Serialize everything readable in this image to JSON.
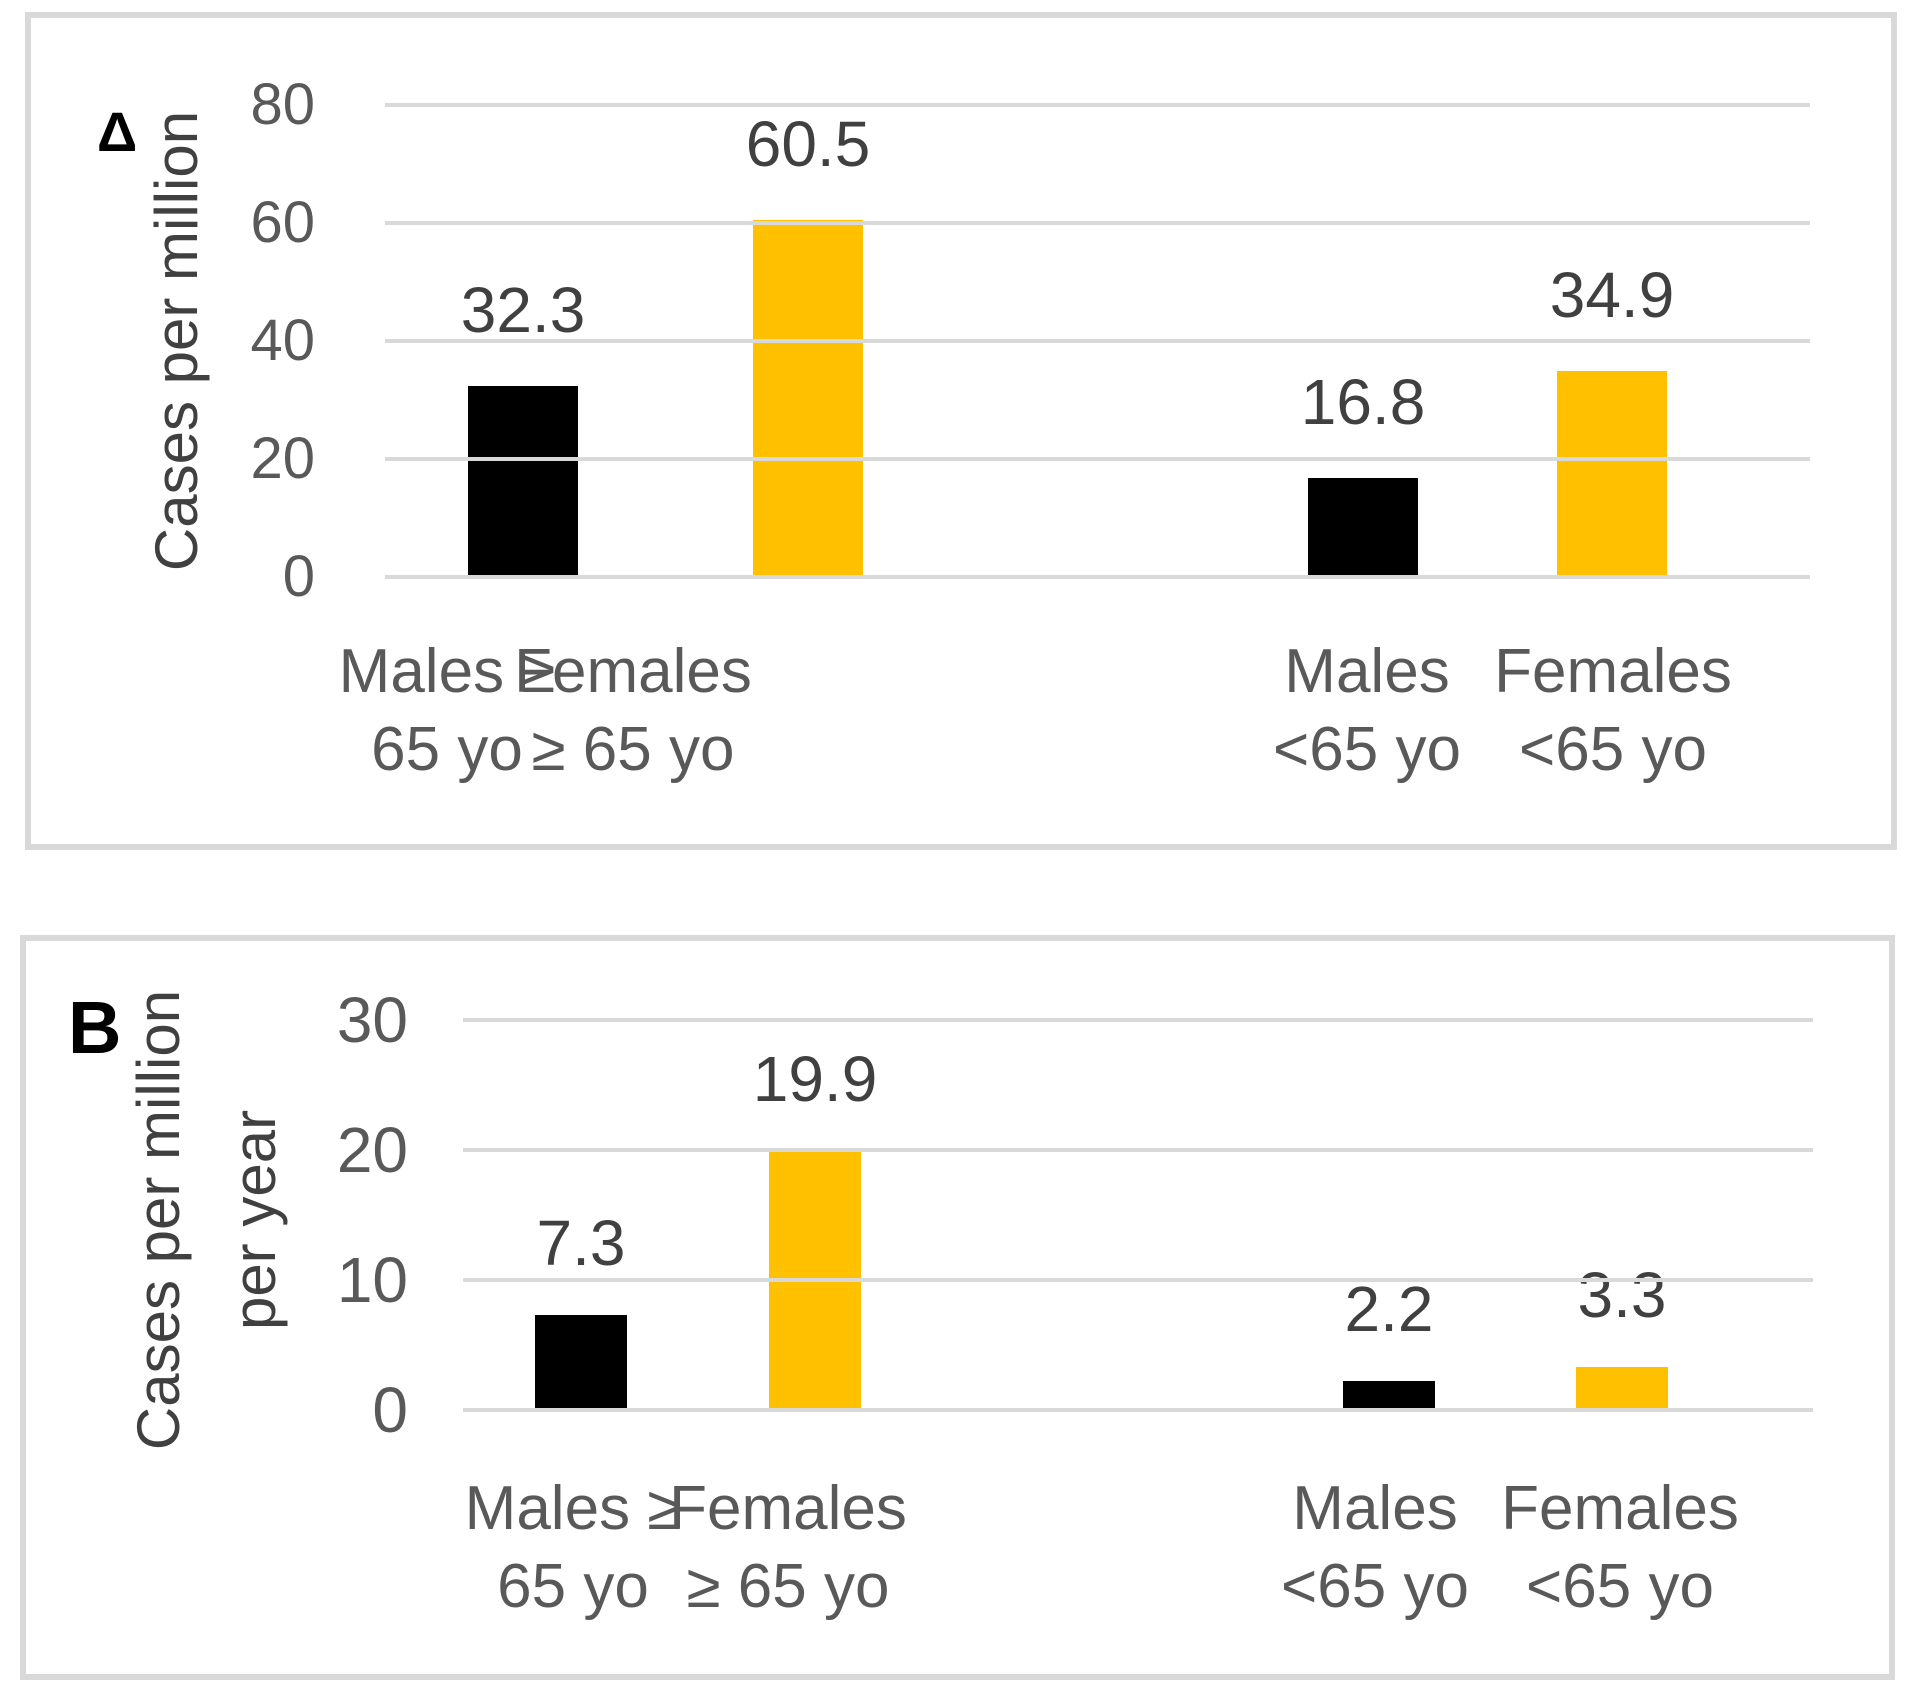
{
  "figure": {
    "background": "#ffffff",
    "panel_border_color": "#d9d9d9",
    "gridline_color": "#d9d9d9",
    "bar_color_black": "#000000",
    "bar_color_gold": "#FFC000",
    "value_label_color": "#404040",
    "tick_label_color": "#595959"
  },
  "chart_data": [
    {
      "type": "bar",
      "panel_label": "Δ",
      "ylabel_lines": [
        "Cases per million"
      ],
      "ylim": [
        0,
        80
      ],
      "yticks": [
        0,
        20,
        40,
        60,
        80
      ],
      "grid": true,
      "legend": "none",
      "categories": [
        "Males ≥ 65 yo",
        "Females ≥ 65 yo",
        "Males <65 yo",
        "Females <65 yo"
      ],
      "bars": [
        {
          "category": "Males ≥ 65 yo",
          "category_lines": [
            "Males ≥",
            "65 yo"
          ],
          "value": 32.3,
          "label": "32.3",
          "color": "#000000"
        },
        {
          "category": "Females ≥ 65 yo",
          "category_lines": [
            "Females",
            "≥ 65 yo"
          ],
          "value": 60.5,
          "label": "60.5",
          "color": "#FFC000"
        },
        {
          "category": "Males <65 yo",
          "category_lines": [
            "Males",
            "<65 yo"
          ],
          "value": 16.8,
          "label": "16.8",
          "color": "#000000"
        },
        {
          "category": "Females <65 yo",
          "category_lines": [
            "Females",
            "<65 yo"
          ],
          "value": 34.9,
          "label": "34.9",
          "color": "#FFC000"
        }
      ]
    },
    {
      "type": "bar",
      "panel_label": "B",
      "ylabel_lines": [
        "Cases per million",
        "per year"
      ],
      "ylim": [
        0,
        30
      ],
      "yticks": [
        0,
        10,
        20,
        30
      ],
      "grid": true,
      "legend": "none",
      "categories": [
        "Males ≥ 65 yo",
        "Females ≥ 65 yo",
        "Males <65 yo",
        "Females <65 yo"
      ],
      "bars": [
        {
          "category": "Males ≥ 65 yo",
          "category_lines": [
            "Males ≥",
            "65 yo"
          ],
          "value": 7.3,
          "label": "7.3",
          "color": "#000000"
        },
        {
          "category": "Females ≥ 65 yo",
          "category_lines": [
            "Females",
            "≥ 65 yo"
          ],
          "value": 19.9,
          "label": "19.9",
          "color": "#FFC000"
        },
        {
          "category": "Males <65 yo",
          "category_lines": [
            "Males",
            "<65 yo"
          ],
          "value": 2.2,
          "label": "2.2",
          "color": "#000000"
        },
        {
          "category": "Females <65 yo",
          "category_lines": [
            "Females",
            "<65 yo"
          ],
          "value": 3.3,
          "label": "3.3",
          "color": "#FFC000"
        }
      ]
    }
  ]
}
